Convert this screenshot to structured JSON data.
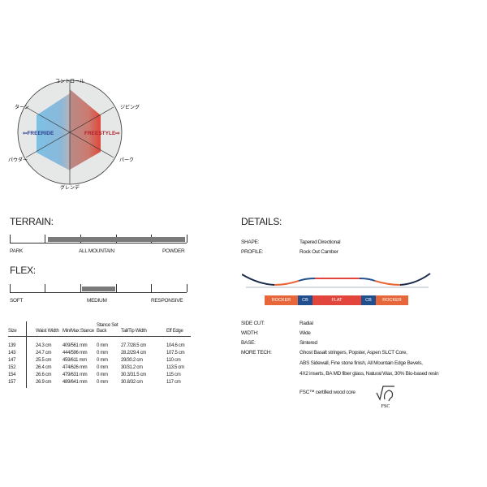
{
  "radar": {
    "axes": [
      "コントロール",
      "ジビング",
      "パーク",
      "グレンデ",
      "パウダー",
      "ターン"
    ],
    "left_label": "⇦FREERIDE",
    "right_label": "FREESTYLE⇨",
    "colors": {
      "left": "#6fb3dd",
      "right": "#d96a5c",
      "circle": "#e6e8e8"
    }
  },
  "terrain": {
    "title": "TERRAIN:",
    "labels": [
      "PARK",
      "ALL MOUNTAIN",
      "POWDER"
    ],
    "range": [
      1,
      5
    ],
    "scale_max": 5
  },
  "flex": {
    "title": "FLEX:",
    "labels": [
      "SOFT",
      "MEDIUM",
      "RESPONSIVE"
    ],
    "range": [
      2,
      3
    ],
    "scale_max": 5
  },
  "sizes": {
    "headers": [
      "Size",
      "Waist Width",
      "Min/Max Stance",
      "Stance Set Back",
      "Tail/Tip Width",
      "Eff Edge"
    ],
    "rows": [
      [
        "139",
        "24.3 cm",
        "409/561 mm",
        "0 mm",
        "27.7/28.5 cm",
        "104.6 cm"
      ],
      [
        "143",
        "24.7 cm",
        "444/596 mm",
        "0 mm",
        "28.2/29.4 cm",
        "107.5 cm"
      ],
      [
        "147",
        "25.5 cm",
        "459/611 mm",
        "0 mm",
        "29/30.2 cm",
        "110 cm"
      ],
      [
        "152",
        "26.4 cm",
        "474/626 mm",
        "0 mm",
        "30/31.2 cm",
        "113.5 cm"
      ],
      [
        "154",
        "26.6 cm",
        "479/631 mm",
        "0 mm",
        "30.3/31.5 cm",
        "115 cm"
      ],
      [
        "157",
        "26.9 cm",
        "489/641 mm",
        "0 mm",
        "30.8/32 cm",
        "117 cm"
      ]
    ]
  },
  "details": {
    "title": "DETAILS:",
    "shape_label": "SHAPE:",
    "shape": "Tapered Directional",
    "profile_label": "PROFILE:",
    "profile": "Rock Out Camber",
    "profile_segments": [
      "ROCKER",
      "CB",
      "FLAT",
      "CB",
      "ROCKER"
    ],
    "sidecut_label": "SIDE CUT:",
    "sidecut": "Radial",
    "width_label": "WIDTH:",
    "width": "Wide",
    "base_label": "BASE:",
    "base": "Sintered",
    "tech_label": "MORE TECH:",
    "tech": [
      "Ghost Basalt stringers, Popster, Aspen SLCT Core,",
      "ABS Sidewall, Fine stone finish, All Mountain Edge Bevels,",
      "4X2 inserts, BA MD fiber glass, Natural Wax, 30% Bio-based resin"
    ],
    "fsc_text": "FSC™ certified wood core",
    "fsc_logo": "FSC",
    "colors": {
      "rocker": "#e8673a",
      "camber": "#1f4f8f",
      "flat": "#e2453c"
    }
  }
}
